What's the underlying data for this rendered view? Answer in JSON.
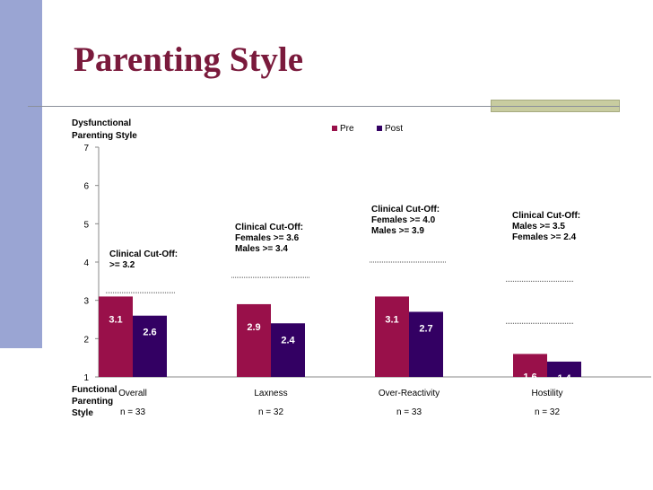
{
  "slide": {
    "title": "Parenting Style"
  },
  "chart_data": {
    "type": "bar",
    "ylabel_top": "Dysfunctional\nParenting Style",
    "ylabel_bottom": "Functional\nParenting\nStyle",
    "ylim": [
      1,
      7
    ],
    "yticks": [
      1,
      2,
      3,
      4,
      5,
      6,
      7
    ],
    "categories": [
      "Overall",
      "Laxness",
      "Over-Reactivity",
      "Hostility"
    ],
    "sample_sizes": [
      "n = 33",
      "n = 32",
      "n = 33",
      "n = 32"
    ],
    "series": [
      {
        "name": "Pre",
        "color": "#99104a",
        "values": [
          3.1,
          2.9,
          3.1,
          1.6
        ],
        "labels": [
          "3.1",
          "2.9",
          "3.1",
          "1.6"
        ]
      },
      {
        "name": "Post",
        "color": "#330063",
        "values": [
          2.6,
          2.4,
          2.7,
          1.4
        ],
        "labels": [
          "2.6",
          "2.4",
          "2.7",
          "1.4"
        ]
      }
    ],
    "legend_position": "top-right",
    "grid": false,
    "cutoffs": [
      {
        "text": [
          "Clinical Cut-Off:",
          ">= 3.2"
        ],
        "lines": [
          3.2
        ]
      },
      {
        "text": [
          "Clinical Cut-Off:",
          "Females >= 3.6",
          "Males  >= 3.4"
        ],
        "lines": [
          3.6
        ]
      },
      {
        "text": [
          "Clinical Cut-Off:",
          "Females >= 4.0",
          "Males  >= 3.9"
        ],
        "lines": [
          4.0
        ]
      },
      {
        "text": [
          "Clinical Cut-Off:",
          "Males >= 3.5",
          "Females >= 2.4"
        ],
        "lines": [
          3.5,
          2.4
        ]
      }
    ]
  }
}
